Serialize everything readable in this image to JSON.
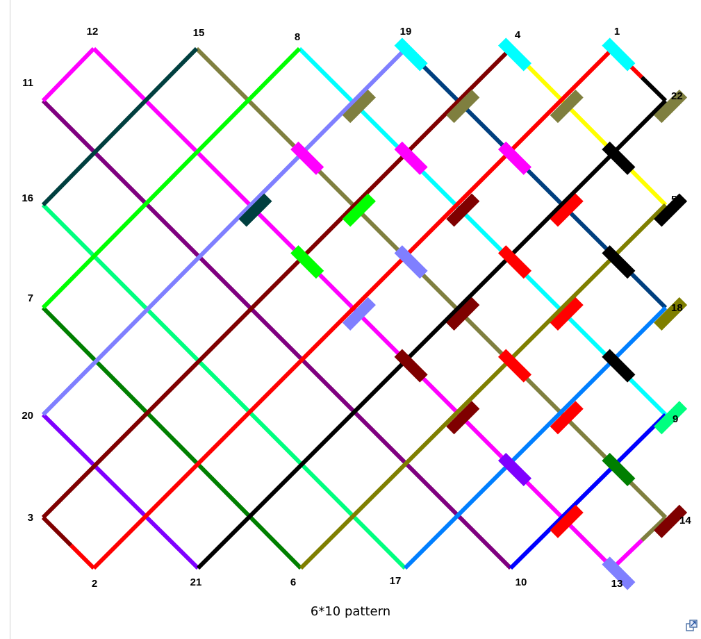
{
  "caption": "6*10 pattern",
  "enlarge_icon": "magnify-clip-icon",
  "nodes": [
    {
      "id": "12",
      "label": "12"
    },
    {
      "id": "15",
      "label": "15"
    },
    {
      "id": "8",
      "label": "8"
    },
    {
      "id": "19",
      "label": "19"
    },
    {
      "id": "4",
      "label": "4"
    },
    {
      "id": "1",
      "label": "1"
    },
    {
      "id": "11",
      "label": "11"
    },
    {
      "id": "22",
      "label": "22"
    },
    {
      "id": "16",
      "label": "16"
    },
    {
      "id": "5",
      "label": "5"
    },
    {
      "id": "7",
      "label": "7"
    },
    {
      "id": "18",
      "label": "18"
    },
    {
      "id": "20",
      "label": "20"
    },
    {
      "id": "9",
      "label": "9"
    },
    {
      "id": "3",
      "label": "3"
    },
    {
      "id": "14",
      "label": "14"
    },
    {
      "id": "2",
      "label": "2"
    },
    {
      "id": "21",
      "label": "21"
    },
    {
      "id": "6",
      "label": "6"
    },
    {
      "id": "17",
      "label": "17"
    },
    {
      "id": "10",
      "label": "10"
    },
    {
      "id": "13",
      "label": "13"
    }
  ],
  "threads": [
    {
      "from": "1",
      "to": "22",
      "color": "#ff0000",
      "color2": "#000000"
    },
    {
      "from": "4",
      "to": "5",
      "color": "#ffff00"
    },
    {
      "from": "19",
      "to": "18",
      "color": "#003f7f"
    },
    {
      "from": "8",
      "to": "9",
      "color": "#00ffff"
    },
    {
      "from": "15",
      "to": "14",
      "color": "#7f7f3f"
    },
    {
      "from": "12",
      "to": "13",
      "color": "#ff00ff"
    },
    {
      "from": "11",
      "to": "10",
      "color": "#7f007f"
    },
    {
      "from": "16",
      "to": "17",
      "color": "#00ff7f"
    },
    {
      "from": "7",
      "to": "6",
      "color": "#007f00"
    },
    {
      "from": "20",
      "to": "21",
      "color": "#7f00ff"
    },
    {
      "from": "3",
      "to": "2",
      "color": "#7f0000",
      "color2": "#ff0000"
    },
    {
      "from": "2",
      "to": "1",
      "color": "#ff0000"
    },
    {
      "from": "21",
      "to": "22",
      "color": "#000000"
    },
    {
      "from": "6",
      "to": "5",
      "color": "#7f7f00"
    },
    {
      "from": "17",
      "to": "18",
      "color": "#007fff"
    },
    {
      "from": "10",
      "to": "9",
      "color": "#0000ff"
    },
    {
      "from": "13",
      "to": "14",
      "color": "#ff00ff",
      "color2": "#7f7f3f"
    },
    {
      "from": "3",
      "to": "4",
      "color": "#7f0000"
    },
    {
      "from": "20",
      "to": "19",
      "color": "#7f7fff"
    },
    {
      "from": "7",
      "to": "8",
      "color": "#00ff00"
    },
    {
      "from": "16",
      "to": "15",
      "color": "#003f3f"
    },
    {
      "from": "11",
      "to": "12",
      "color": "#ff00ff"
    }
  ],
  "knots": [
    {
      "a": 0,
      "b": 0,
      "color": "#003f3f"
    },
    {
      "a": 0,
      "b": 1,
      "color": "#00ff00"
    },
    {
      "a": 0,
      "b": 2,
      "color": "#7f7fff"
    },
    {
      "a": 0,
      "b": 3,
      "color": "#7f0000"
    },
    {
      "a": 0,
      "b": 4,
      "color": "#7f0000"
    },
    {
      "a": 1,
      "b": 0,
      "color": "#ff00ff"
    },
    {
      "a": 1,
      "b": 1,
      "color": "#00ff00"
    },
    {
      "a": 1,
      "b": 2,
      "color": "#7f7fff"
    },
    {
      "a": 1,
      "b": 3,
      "color": "#7f0000"
    },
    {
      "a": 1,
      "b": 4,
      "color": "#ff0000"
    },
    {
      "a": 2,
      "b": 0,
      "color": "#7f7f3f"
    },
    {
      "a": 2,
      "b": 1,
      "color": "#ff00ff"
    },
    {
      "a": 2,
      "b": 2,
      "color": "#7f0000"
    },
    {
      "a": 2,
      "b": 3,
      "color": "#ff0000"
    },
    {
      "a": 2,
      "b": 4,
      "color": "#ff0000"
    },
    {
      "a": 3,
      "b": 0,
      "color": "#00ffff"
    },
    {
      "a": 3,
      "b": 1,
      "color": "#7f7f3f"
    },
    {
      "a": 3,
      "b": 2,
      "color": "#ff00ff"
    },
    {
      "a": 3,
      "b": 3,
      "color": "#ff0000"
    },
    {
      "a": 3,
      "b": 4,
      "color": "#000000"
    },
    {
      "a": 4,
      "b": 0,
      "color": "#003f7f"
    },
    {
      "a": 4,
      "b": 1,
      "color": "#00ffff"
    },
    {
      "a": 4,
      "b": 2,
      "color": "#7f7f3f"
    },
    {
      "a": 4,
      "b": 3,
      "color": "#000000"
    },
    {
      "a": 4,
      "b": 4,
      "color": "#000000"
    },
    {
      "a": 5,
      "b": 0,
      "color": "#ffff00"
    },
    {
      "a": 5,
      "b": 1,
      "color": "#003f7f"
    },
    {
      "a": 5,
      "b": 2,
      "color": "#00ffff"
    },
    {
      "a": 5,
      "b": 3,
      "color": "#7f7f3f"
    },
    {
      "a": 5,
      "b": 4,
      "color": "#7f7f00"
    },
    {
      "a": 0,
      "b": 5,
      "color": "#7f00ff"
    },
    {
      "a": 1,
      "b": 5,
      "color": "#ff0000"
    },
    {
      "a": 2,
      "b": 5,
      "color": "#000000"
    },
    {
      "a": 3,
      "b": 5,
      "color": "#7f7f00"
    },
    {
      "a": 4,
      "b": 5,
      "color": "#007fff"
    },
    {
      "a": 5,
      "b": 5,
      "color": "#0000ff"
    },
    {
      "a": 0,
      "b": 6,
      "color": "#ff0000"
    },
    {
      "a": 1,
      "b": 6,
      "color": "#007f00"
    },
    {
      "a": 2,
      "b": 6,
      "color": "#00ff7f"
    },
    {
      "a": 3,
      "b": 6,
      "color": "#7f007f"
    },
    {
      "a": 4,
      "b": 6,
      "color": "#ff00ff"
    },
    {
      "a": 0,
      "b": 7,
      "color": "#7f7fff"
    },
    {
      "a": 0,
      "b": 8,
      "color": "#00ff00"
    },
    {
      "a": 1,
      "b": 7,
      "color": "#7f0000"
    },
    {
      "a": 1,
      "b": 8,
      "color": "#00ff7f"
    },
    {
      "a": 2,
      "b": 7,
      "color": "#00ff7f"
    },
    {
      "a": 2,
      "b": 8,
      "color": "#7f007f"
    },
    {
      "a": 3,
      "b": 7,
      "color": "#7f007f"
    },
    {
      "a": 3,
      "b": 8,
      "color": "#ff00ff"
    },
    {
      "a": 4,
      "b": 7,
      "color": "#7f7f3f"
    },
    {
      "a": 4,
      "b": 8,
      "color": "#00ffff"
    },
    {
      "a": 5,
      "b": 6,
      "color": "#007fff"
    },
    {
      "a": 5,
      "b": 7,
      "color": "#00ffff"
    },
    {
      "a": 5,
      "b": 8,
      "color": "#003f7f"
    },
    {
      "a": 0,
      "b": 9,
      "color": "#003f3f"
    },
    {
      "a": 1,
      "b": 9,
      "color": "#7f007f"
    },
    {
      "a": 2,
      "b": 9,
      "color": "#ff00ff"
    },
    {
      "a": 3,
      "b": 9,
      "color": "#7f7f3f"
    },
    {
      "a": 4,
      "b": 9,
      "color": "#00ffff"
    },
    {
      "a": 5,
      "b": 9,
      "color": "#ffff00"
    }
  ]
}
